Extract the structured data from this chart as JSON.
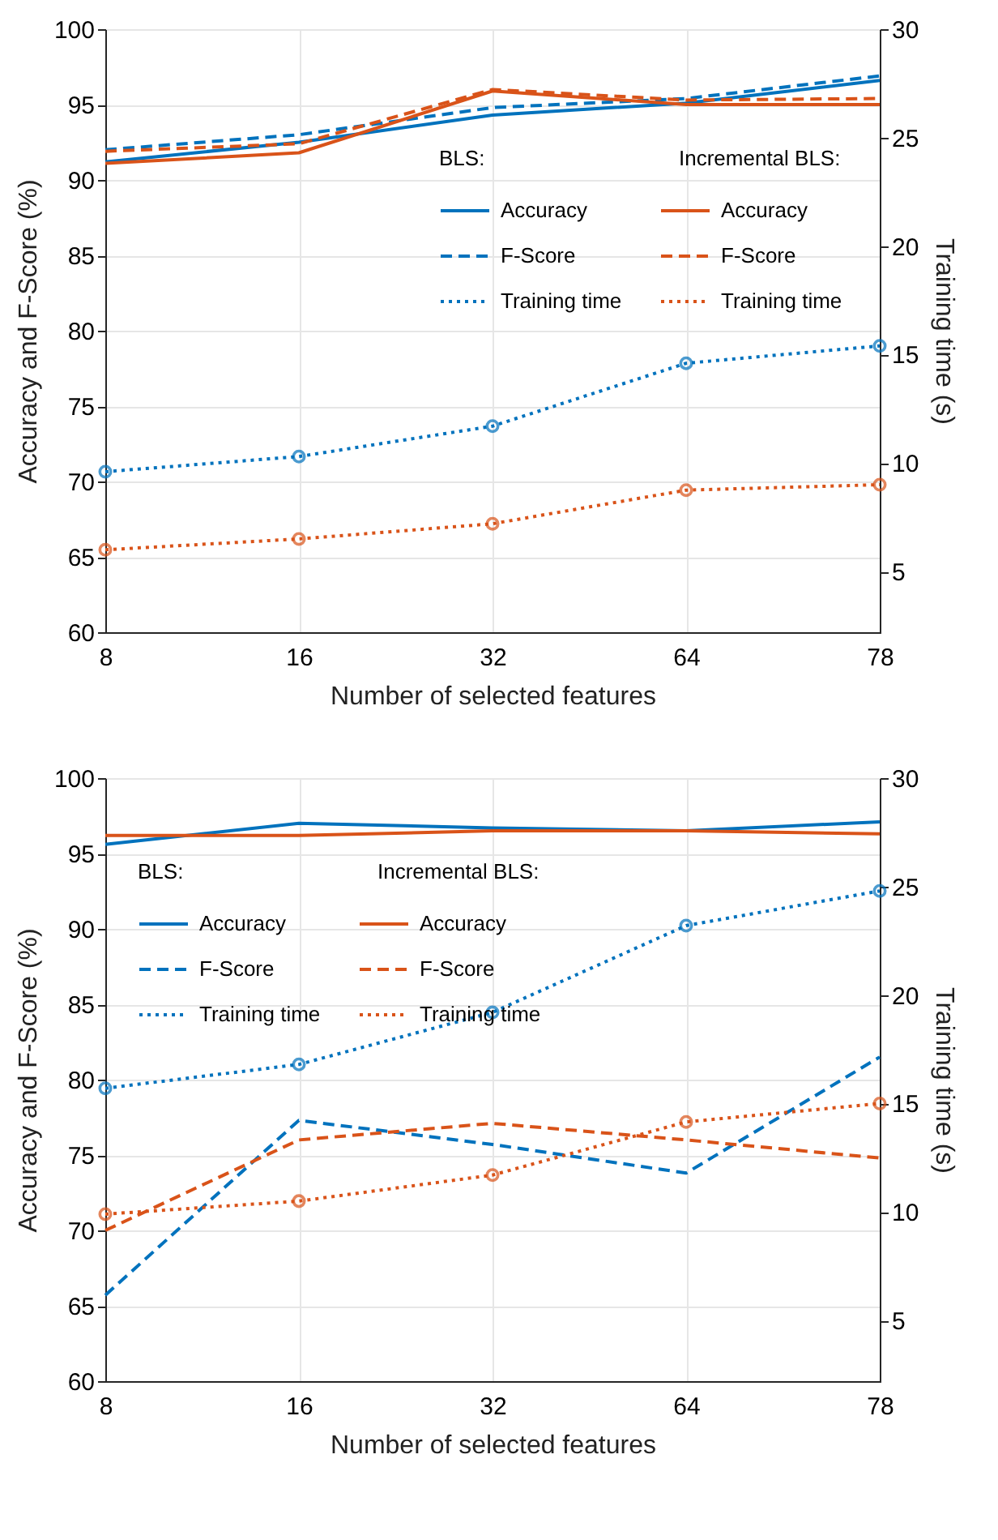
{
  "chart_data": [
    {
      "type": "line",
      "categories": [
        "8",
        "16",
        "32",
        "64",
        "78"
      ],
      "xlabel": "Number of selected features",
      "ylabel": "Accuracy and F-Score (%)",
      "y2label": "Training time (s)",
      "ylim": [
        60,
        100
      ],
      "yticks": [
        60,
        65,
        70,
        75,
        80,
        85,
        90,
        95,
        100
      ],
      "y2lim": [
        2.2,
        30
      ],
      "y2ticks": [
        5,
        10,
        15,
        20,
        25,
        30
      ],
      "grid": true,
      "legend": "right",
      "annotations": [
        "BLS:",
        "Incremental BLS:"
      ],
      "series": [
        {
          "name": "Accuracy",
          "color": "#0072bd",
          "line_style": "solid",
          "values": [
            91.2,
            92.5,
            94.3,
            95.1,
            96.6
          ]
        },
        {
          "name": "F-Score",
          "color": "#0072bd",
          "line_style": "dashed",
          "values": [
            92.0,
            93.0,
            94.8,
            95.4,
            96.9
          ]
        },
        {
          "name": "Training time",
          "color": "#0072bd",
          "line_style": "dotted",
          "marker": "circle",
          "axis": "y2",
          "values": [
            9.6,
            10.3,
            11.7,
            14.6,
            15.4
          ]
        },
        {
          "name": "Accuracy",
          "color": "#d95319",
          "line_style": "solid",
          "values": [
            91.1,
            91.8,
            95.9,
            95.0,
            95.0
          ]
        },
        {
          "name": "F-Score",
          "color": "#d95319",
          "line_style": "dashed",
          "values": [
            91.9,
            92.4,
            96.0,
            95.3,
            95.4
          ]
        },
        {
          "name": "Training time",
          "color": "#d95319",
          "line_style": "dotted",
          "marker": "circle",
          "axis": "y2",
          "values": [
            6.0,
            6.5,
            7.2,
            8.75,
            9.0
          ]
        }
      ]
    },
    {
      "type": "line",
      "categories": [
        "8",
        "16",
        "32",
        "64",
        "78"
      ],
      "xlabel": "Number of selected features",
      "ylabel": "Accuracy and F-Score (%)",
      "y2label": "Training time (s)",
      "ylim": [
        60,
        100
      ],
      "yticks": [
        60,
        65,
        70,
        75,
        80,
        85,
        90,
        95,
        100
      ],
      "y2lim": [
        2.2,
        30
      ],
      "y2ticks": [
        5,
        10,
        15,
        20,
        25,
        30
      ],
      "grid": true,
      "legend": "top left",
      "annotations": [
        "BLS:",
        "Incremental BLS:"
      ],
      "series": [
        {
          "name": "Accuracy",
          "color": "#0072bd",
          "line_style": "solid",
          "values": [
            95.6,
            97.0,
            96.7,
            96.5,
            97.1
          ]
        },
        {
          "name": "F-Score",
          "color": "#0072bd",
          "line_style": "dashed",
          "values": [
            65.7,
            77.3,
            75.7,
            73.8,
            81.5
          ]
        },
        {
          "name": "Training time",
          "color": "#0072bd",
          "line_style": "dotted",
          "marker": "circle",
          "axis": "y2",
          "values": [
            15.7,
            16.8,
            19.2,
            23.2,
            24.8
          ]
        },
        {
          "name": "Accuracy",
          "color": "#d95319",
          "line_style": "solid",
          "values": [
            96.2,
            96.2,
            96.5,
            96.5,
            96.3
          ]
        },
        {
          "name": "F-Score",
          "color": "#d95319",
          "line_style": "dashed",
          "values": [
            70.0,
            76.0,
            77.1,
            76.0,
            74.8
          ]
        },
        {
          "name": "Training time",
          "color": "#d95319",
          "line_style": "dotted",
          "marker": "circle",
          "axis": "y2",
          "values": [
            9.9,
            10.5,
            11.7,
            14.15,
            15.0
          ]
        }
      ]
    }
  ]
}
